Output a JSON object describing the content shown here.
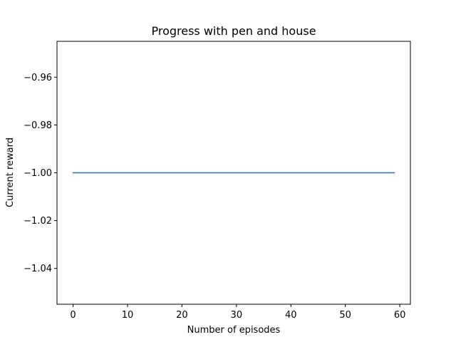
{
  "chart_data": {
    "type": "line",
    "title": "Progress with pen and house",
    "xlabel": "Number of episodes",
    "ylabel": "Current reward",
    "x_ticks": [
      0,
      10,
      20,
      30,
      40,
      50,
      60
    ],
    "y_ticks": [
      -0.96,
      -0.98,
      -1.0,
      -1.02,
      -1.04
    ],
    "y_tick_labels": [
      "−0.96",
      "−0.98",
      "−1.00",
      "−1.02",
      "−1.04"
    ],
    "xlim": [
      -2.95,
      61.95
    ],
    "ylim": [
      -1.055,
      -0.945
    ],
    "grid": false,
    "legend": false,
    "series": [
      {
        "color": "#1f77b4",
        "x": [
          0,
          59
        ],
        "y": [
          -1.0,
          -1.0
        ]
      }
    ]
  }
}
